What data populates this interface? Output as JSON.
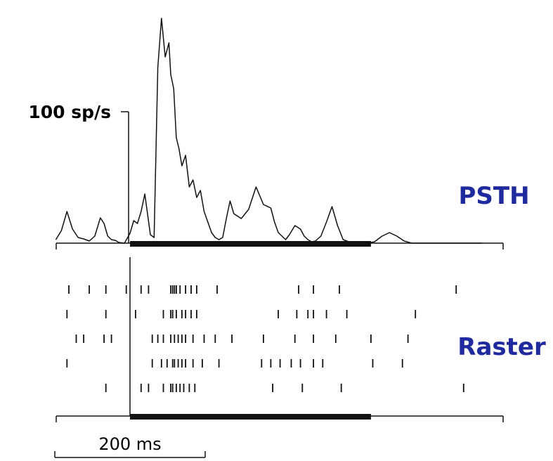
{
  "chart_data": {
    "type": "line",
    "y_scale_label": "100 sp/s",
    "time_scale_label": "200 ms",
    "psth_label": "PSTH",
    "raster_label": "Raster",
    "colors": {
      "line": "#111111",
      "label_accent": "#1f2a9e"
    },
    "stimulus": {
      "onset_ms": 0,
      "offset_ms": 650
    },
    "psth": {
      "units": "sp/s",
      "x_ms": [
        -200,
        -185,
        -170,
        -155,
        -140,
        -125,
        -110,
        -95,
        -80,
        -70,
        -60,
        -50,
        -40,
        -30,
        -15,
        0,
        10,
        20,
        30,
        40,
        55,
        65,
        75,
        85,
        95,
        105,
        110,
        118,
        125,
        132,
        140,
        150,
        160,
        170,
        180,
        190,
        200,
        210,
        220,
        230,
        240,
        250,
        260,
        270,
        280,
        300,
        320,
        340,
        360,
        380,
        390,
        400,
        410,
        420,
        430,
        445,
        460,
        470,
        480,
        490,
        500,
        515,
        530,
        545,
        560,
        575,
        590,
        605,
        620,
        640,
        660,
        680,
        700,
        720,
        740,
        760,
        780,
        800,
        820,
        840,
        860,
        880,
        900,
        920,
        950
      ],
      "y_sps": [
        5,
        18,
        45,
        20,
        8,
        6,
        3,
        10,
        36,
        28,
        10,
        5,
        4,
        1,
        0,
        14,
        32,
        28,
        45,
        70,
        12,
        8,
        250,
        320,
        265,
        285,
        240,
        220,
        150,
        135,
        110,
        125,
        80,
        90,
        65,
        75,
        45,
        30,
        15,
        8,
        5,
        8,
        35,
        60,
        42,
        35,
        48,
        80,
        55,
        50,
        30,
        15,
        10,
        5,
        12,
        25,
        20,
        10,
        5,
        2,
        3,
        10,
        30,
        52,
        25,
        5,
        2,
        0,
        0,
        0,
        2,
        10,
        15,
        10,
        3,
        0,
        0,
        0,
        0,
        0,
        0,
        0,
        0,
        0,
        0
      ]
    },
    "raster_trials_ms": [
      [
        -165,
        -110,
        -65,
        -10,
        30,
        50,
        110,
        115,
        120,
        125,
        135,
        150,
        165,
        180,
        235,
        455,
        495,
        565,
        880
      ],
      [
        -170,
        -65,
        15,
        90,
        110,
        115,
        125,
        140,
        150,
        165,
        180,
        400,
        450,
        480,
        495,
        530,
        585,
        770
      ],
      [
        -145,
        -125,
        -70,
        -50,
        60,
        75,
        90,
        110,
        120,
        130,
        140,
        150,
        170,
        200,
        230,
        275,
        360,
        445,
        495,
        555,
        650,
        750
      ],
      [
        -170,
        60,
        85,
        100,
        115,
        120,
        130,
        140,
        150,
        170,
        195,
        240,
        355,
        380,
        405,
        435,
        460,
        495,
        520,
        655,
        735
      ],
      [
        -65,
        30,
        50,
        90,
        110,
        115,
        125,
        135,
        145,
        160,
        175,
        385,
        465,
        570,
        900
      ]
    ]
  }
}
